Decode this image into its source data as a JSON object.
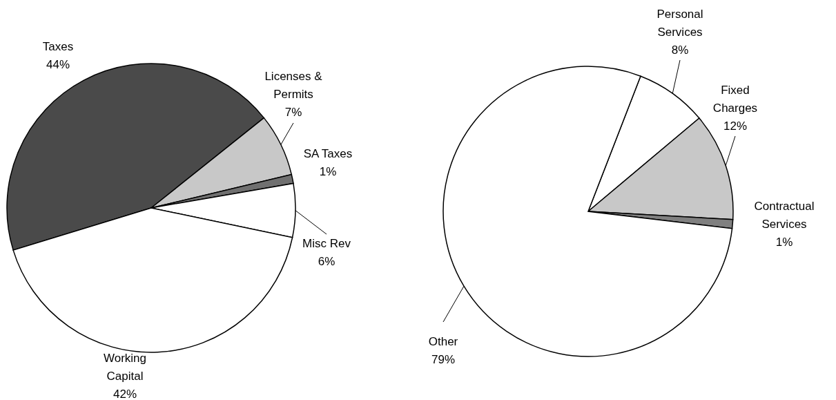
{
  "chart_data": [
    {
      "type": "pie",
      "categories": [
        "Taxes",
        "Licenses & Permits",
        "SA Taxes",
        "Misc Rev",
        "Working Capital"
      ],
      "values": [
        44,
        7,
        1,
        6,
        42
      ],
      "value_labels": [
        "44%",
        "7%",
        "1%",
        "6%",
        "42%"
      ],
      "colors": [
        "#4a4a4a",
        "#c8c8c8",
        "#707070",
        "#ffffff",
        "#ffffff"
      ]
    },
    {
      "type": "pie",
      "categories": [
        "Personal Services",
        "Fixed Charges",
        "Contractual Services",
        "Other"
      ],
      "values": [
        8,
        12,
        1,
        79
      ],
      "value_labels": [
        "8%",
        "12%",
        "1%",
        "79%"
      ],
      "colors": [
        "#ffffff",
        "#c8c8c8",
        "#808080",
        "#ffffff"
      ]
    }
  ]
}
